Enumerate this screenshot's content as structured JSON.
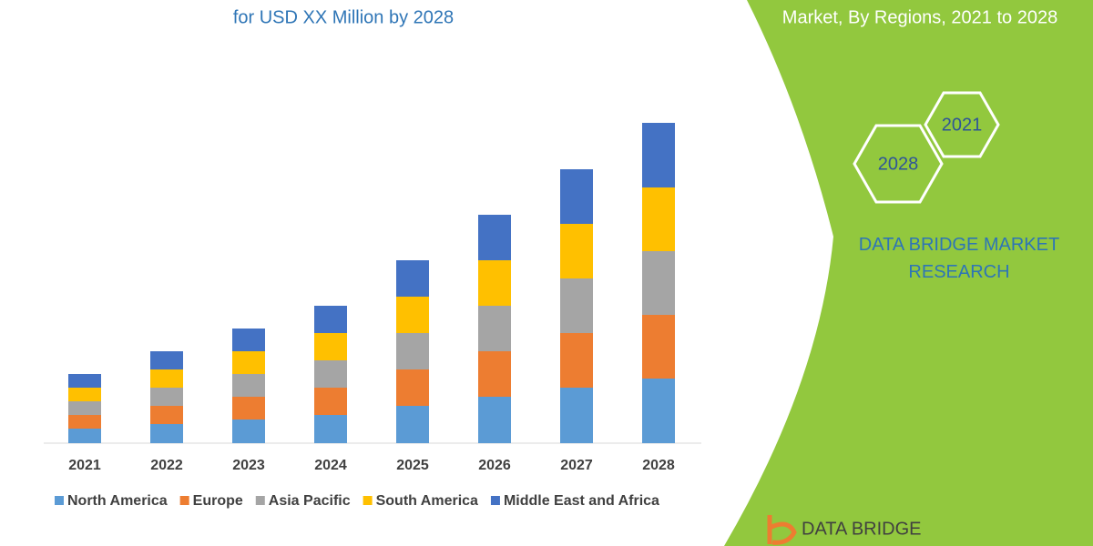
{
  "chart_data": {
    "type": "stacked-bar",
    "title": "for USD XX Million by 2028",
    "categories": [
      "2021",
      "2022",
      "2023",
      "2024",
      "2025",
      "2026",
      "2027",
      "2028"
    ],
    "series": [
      {
        "name": "North America",
        "color": "#5b9bd5",
        "values": [
          16,
          21,
          26,
          31,
          41,
          51,
          61,
          71
        ]
      },
      {
        "name": "Europe",
        "color": "#ed7d31",
        "values": [
          15,
          20,
          25,
          30,
          40,
          50,
          60,
          70
        ]
      },
      {
        "name": "Asia Pacific",
        "color": "#a5a5a5",
        "values": [
          15,
          20,
          25,
          30,
          40,
          50,
          60,
          70
        ]
      },
      {
        "name": "South America",
        "color": "#ffc000",
        "values": [
          15,
          20,
          25,
          30,
          40,
          50,
          60,
          70
        ]
      },
      {
        "name": "Middle East and Africa",
        "color": "#4472c4",
        "values": [
          15,
          20,
          25,
          30,
          40,
          50,
          60,
          71
        ]
      }
    ],
    "ylim": [
      0,
      360
    ]
  },
  "panel": {
    "subtitle": "Market, By Regions, 2021 to 2028",
    "hexagons": [
      "2021",
      "2028"
    ],
    "brand": "DATA BRIDGE MARKET RESEARCH",
    "logo": "DATA BRIDGE"
  }
}
